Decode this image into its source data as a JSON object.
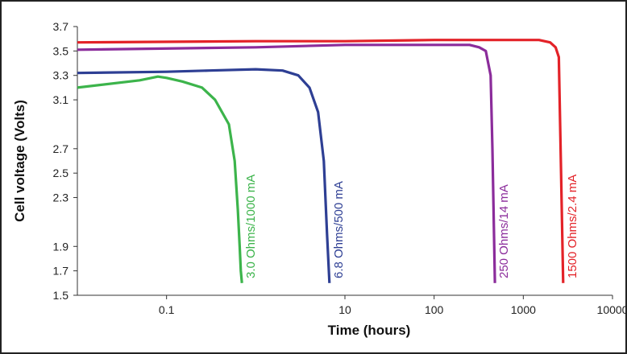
{
  "chart_data": {
    "type": "line",
    "xlabel": "Time (hours)",
    "ylabel": "Cell voltage (Volts)",
    "x_scale": "log",
    "xlim": [
      0.01,
      10000
    ],
    "ylim": [
      1.5,
      3.7
    ],
    "x_ticks": [
      "0.1",
      "10",
      "100",
      "1000",
      "10000"
    ],
    "y_ticks": [
      "1.5",
      "1.7",
      "1.9",
      "2.3",
      "2.5",
      "2.7",
      "3.1",
      "3.3",
      "3.5",
      "3.7"
    ],
    "grid": false,
    "series": [
      {
        "name": "3.0 Ohms/1000 mA",
        "color": "#3cb44b",
        "x": [
          0.01,
          0.05,
          0.08,
          0.1,
          0.15,
          0.25,
          0.35,
          0.5,
          0.58,
          0.63,
          0.66,
          0.68,
          0.7
        ],
        "y": [
          3.2,
          3.26,
          3.29,
          3.28,
          3.25,
          3.2,
          3.1,
          2.9,
          2.6,
          2.2,
          1.9,
          1.7,
          1.6
        ]
      },
      {
        "name": "6.8 Ohms/500 mA",
        "color": "#2e3f94",
        "x": [
          0.01,
          0.1,
          0.3,
          1,
          2,
          3,
          4,
          5,
          5.8,
          6.3,
          6.7
        ],
        "y": [
          3.32,
          3.33,
          3.34,
          3.35,
          3.34,
          3.3,
          3.2,
          3.0,
          2.6,
          2.0,
          1.6
        ]
      },
      {
        "name": "250 Ohms/14 mA",
        "color": "#8b2c9b",
        "x": [
          0.01,
          1,
          10,
          100,
          250,
          320,
          380,
          430,
          450,
          480
        ],
        "y": [
          3.51,
          3.53,
          3.55,
          3.55,
          3.55,
          3.53,
          3.5,
          3.3,
          2.7,
          1.6
        ]
      },
      {
        "name": "1500 Ohms/2.4 mA",
        "color": "#e32228",
        "x": [
          0.01,
          1,
          10,
          100,
          1000,
          1500,
          2000,
          2300,
          2500,
          2650,
          2800
        ],
        "y": [
          3.57,
          3.58,
          3.58,
          3.59,
          3.59,
          3.59,
          3.57,
          3.53,
          3.45,
          2.5,
          1.6
        ]
      }
    ]
  }
}
